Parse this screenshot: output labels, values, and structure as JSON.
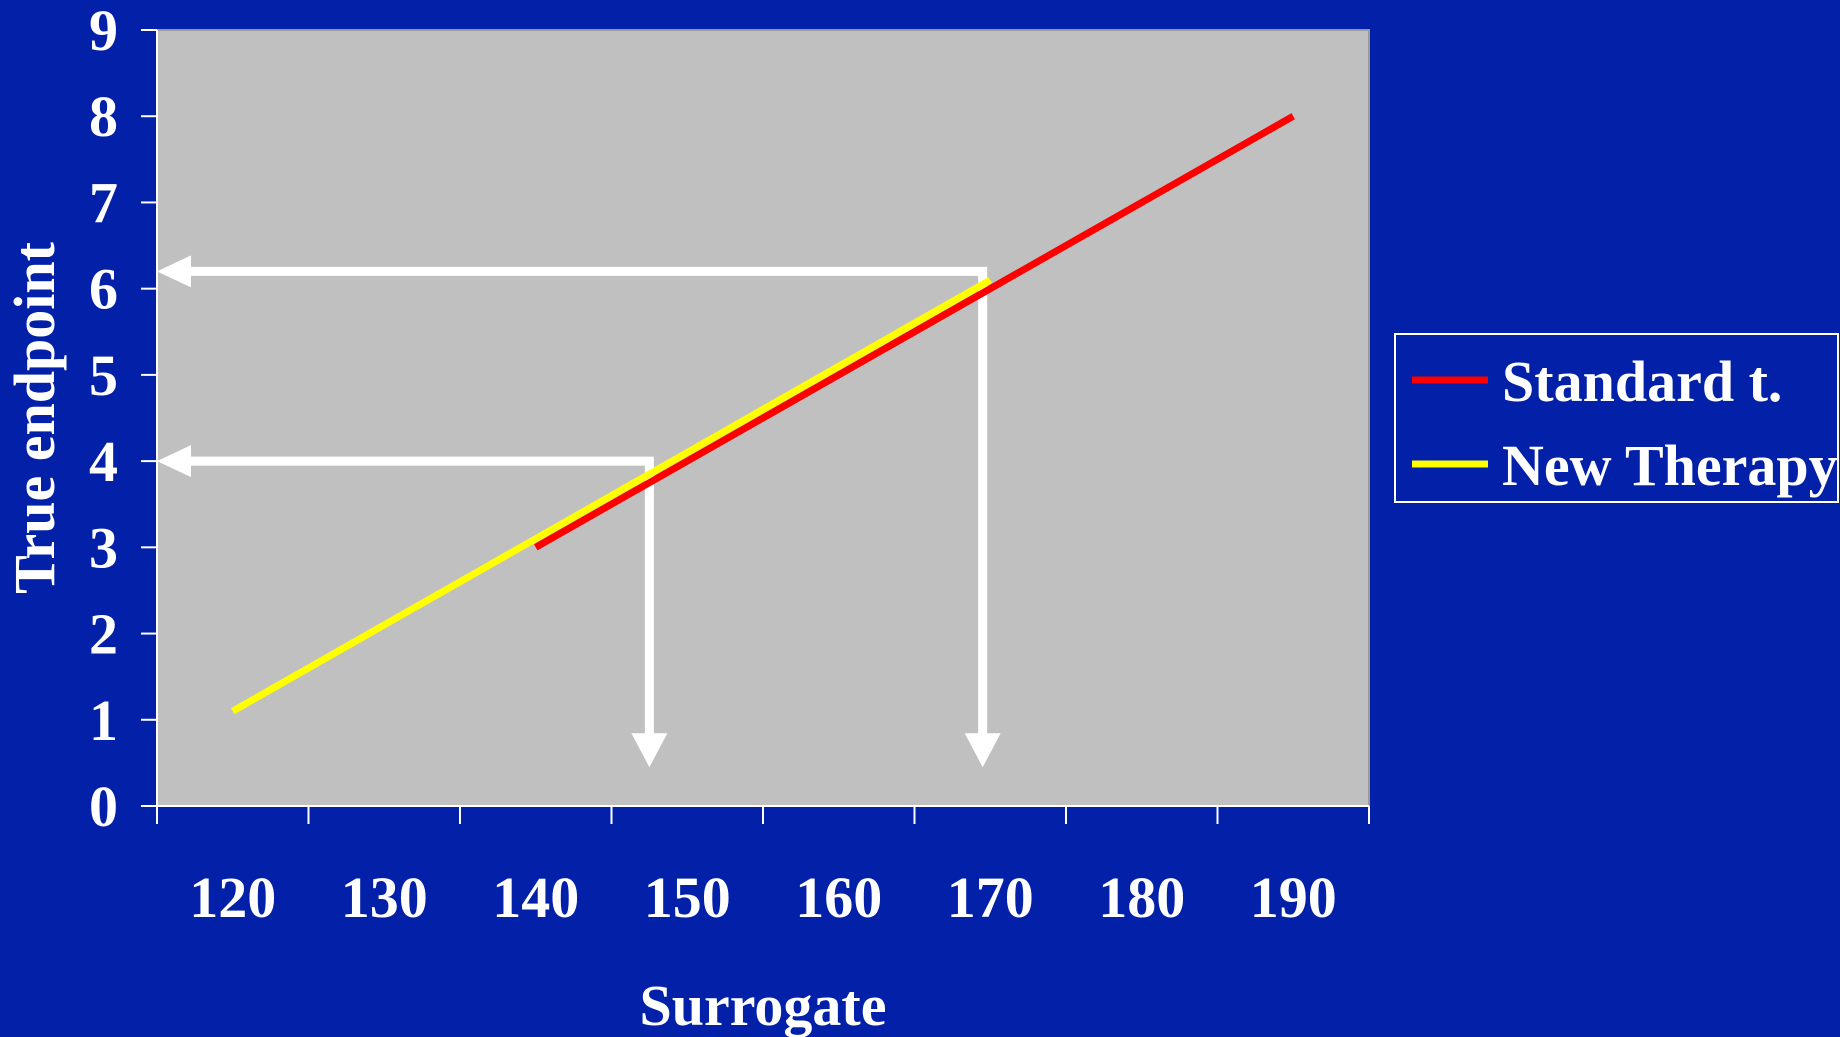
{
  "colors": {
    "background": "#0220A8",
    "plot_area": "#C0C0C0",
    "axis": "#FFFFFF",
    "arrow": "#FFFFFF"
  },
  "chart_data": {
    "type": "line",
    "xlabel": "Surrogate",
    "ylabel": "True endpoint",
    "xlim": [
      115,
      195
    ],
    "ylim": [
      0,
      9
    ],
    "x_ticks": [
      120,
      130,
      140,
      150,
      160,
      170,
      180,
      190
    ],
    "y_ticks": [
      0,
      1,
      2,
      3,
      4,
      5,
      6,
      7,
      8,
      9
    ],
    "grid": false,
    "legend_position": "right",
    "series": [
      {
        "name": "Standard t.",
        "color": "#FF0000",
        "x": [
          140,
          190
        ],
        "y": [
          3,
          8
        ]
      },
      {
        "name": "New Therapy",
        "color": "#FFFF00",
        "x": [
          120,
          170
        ],
        "y": [
          1.1,
          6.1
        ]
      }
    ],
    "annotations": [
      {
        "type": "arrow-path",
        "points": [
          [
            147.5,
            0.45
          ],
          [
            147.5,
            4
          ],
          [
            115,
            4
          ]
        ]
      },
      {
        "type": "arrow-path",
        "points": [
          [
            169.5,
            0.45
          ],
          [
            169.5,
            6.2
          ],
          [
            115,
            6.2
          ]
        ]
      }
    ]
  }
}
